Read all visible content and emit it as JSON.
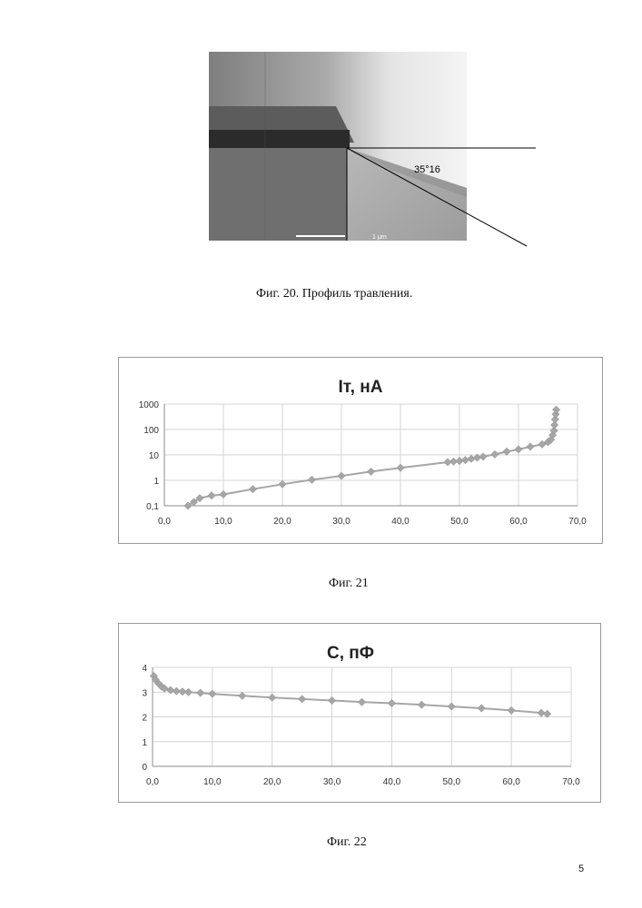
{
  "figures": {
    "fig20": {
      "caption": "Фиг. 20.   Профиль травления.",
      "angle_label": "35°16",
      "scale_label": "1 μm"
    },
    "fig21": {
      "caption": "Фиг. 21"
    },
    "fig22": {
      "caption": "Фиг. 22"
    }
  },
  "page_number": "5",
  "chart_data": [
    {
      "type": "scatter",
      "title": "Iт, нА",
      "xlabel": "",
      "ylabel": "",
      "yscale": "log",
      "xlim": [
        0,
        70
      ],
      "ylim": [
        0.1,
        1000
      ],
      "x_ticks": [
        "0,0",
        "10,0",
        "20,0",
        "30,0",
        "40,0",
        "50,0",
        "60,0",
        "70,0"
      ],
      "y_ticks": [
        "0,1",
        "1",
        "10",
        "100",
        "1000"
      ],
      "grid": true,
      "color": "#a6a6a6",
      "series": [
        {
          "x": [
            4.0,
            5.0,
            6.0,
            8.0,
            10.0,
            15.0,
            20.0,
            25.0,
            30.0,
            35.0,
            40.0,
            48.0,
            49.0,
            50.0,
            51.0,
            52.0,
            53.0,
            54.0,
            56.0,
            58.0,
            60.0,
            62.0,
            64.0,
            65.0,
            65.5,
            65.8,
            66.0,
            66.1,
            66.2,
            66.3,
            66.4
          ],
          "y": [
            0.1,
            0.14,
            0.2,
            0.25,
            0.28,
            0.45,
            0.7,
            1.05,
            1.5,
            2.2,
            3.1,
            5.2,
            5.5,
            5.8,
            6.3,
            7.0,
            7.8,
            8.5,
            10.5,
            13.5,
            16.5,
            21,
            26,
            32,
            40,
            60,
            90,
            150,
            250,
            400,
            600
          ]
        }
      ]
    },
    {
      "type": "line",
      "title": "С, пФ",
      "xlabel": "",
      "ylabel": "",
      "xlim": [
        0,
        70
      ],
      "ylim": [
        0,
        4
      ],
      "x_ticks": [
        "0,0",
        "10,0",
        "20,0",
        "30,0",
        "40,0",
        "50,0",
        "60,0",
        "70,0"
      ],
      "y_ticks": [
        "0",
        "1",
        "2",
        "3",
        "4"
      ],
      "grid": true,
      "color": "#a6a6a6",
      "series": [
        {
          "x": [
            0.2,
            0.5,
            1.0,
            1.5,
            2.0,
            3.0,
            4.0,
            5.0,
            6.0,
            8.0,
            10.0,
            15.0,
            20.0,
            25.0,
            30.0,
            35.0,
            40.0,
            45.0,
            50.0,
            55.0,
            60.0,
            65.0,
            66.0
          ],
          "y": [
            3.65,
            3.5,
            3.35,
            3.22,
            3.15,
            3.08,
            3.04,
            3.02,
            3.0,
            2.97,
            2.93,
            2.85,
            2.78,
            2.72,
            2.66,
            2.6,
            2.55,
            2.49,
            2.42,
            2.35,
            2.26,
            2.16,
            2.12
          ]
        }
      ]
    }
  ]
}
